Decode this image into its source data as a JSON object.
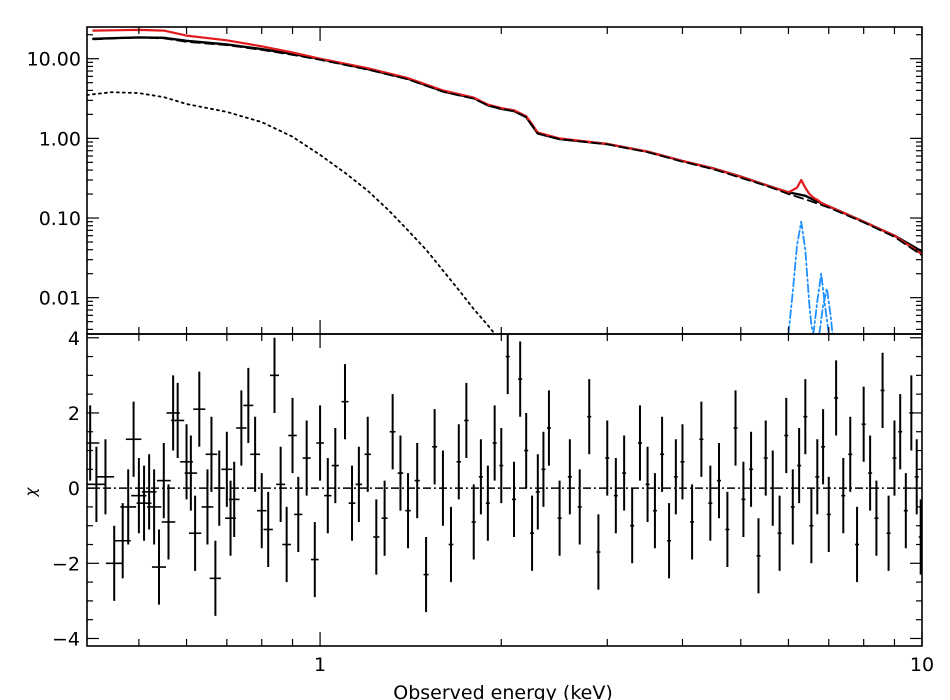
{
  "chart_data": [
    {
      "type": "line",
      "panel": "spectrum",
      "title": "",
      "xlabel": "",
      "ylabel": "",
      "x_scale": "log",
      "y_scale": "log",
      "xlim": [
        0.41,
        10
      ],
      "ylim": [
        0.0035,
        25
      ],
      "y_ticks": [
        0.01,
        0.1,
        1,
        10
      ],
      "y_tick_labels": [
        "0.01",
        "0.10",
        "1.00",
        "10.00"
      ],
      "series": [
        {
          "style": "data points",
          "color": "#000000",
          "x": [
            0.42,
            0.5,
            0.55,
            0.6,
            0.7,
            0.8,
            0.9,
            1.0,
            1.2,
            1.4,
            1.6,
            1.8,
            1.9,
            2.0,
            2.1,
            2.2,
            2.25,
            2.3,
            2.5,
            3.0,
            3.5,
            4.0,
            4.5,
            5.0,
            5.5,
            6.0,
            6.2,
            6.4,
            6.6,
            7.0,
            8.0,
            9.0,
            10.0
          ],
          "y": [
            17.8,
            18.5,
            18.3,
            16.8,
            15.1,
            13.2,
            11.5,
            9.9,
            7.4,
            5.6,
            3.9,
            3.2,
            2.6,
            2.35,
            2.2,
            1.85,
            1.45,
            1.15,
            0.98,
            0.85,
            0.68,
            0.52,
            0.42,
            0.33,
            0.26,
            0.21,
            0.2,
            0.19,
            0.17,
            0.14,
            0.09,
            0.06,
            0.038
          ]
        },
        {
          "style": "solid",
          "color": "#e31a1c",
          "x": [
            0.42,
            0.5,
            0.55,
            0.6,
            0.7,
            0.8,
            0.9,
            1.0,
            1.2,
            1.4,
            1.6,
            1.8,
            1.9,
            2.0,
            2.1,
            2.2,
            2.25,
            2.3,
            2.5,
            3.0,
            3.5,
            4.0,
            4.5,
            5.0,
            5.5,
            6.0,
            6.2,
            6.3,
            6.4,
            6.5,
            6.6,
            6.7,
            6.8,
            7.0,
            8.0,
            9.0,
            10.0
          ],
          "y": [
            22.5,
            23.0,
            22.5,
            19.5,
            17.0,
            14.3,
            12.0,
            10.0,
            7.6,
            5.7,
            4.0,
            3.25,
            2.65,
            2.4,
            2.25,
            1.9,
            1.5,
            1.18,
            1.0,
            0.85,
            0.68,
            0.52,
            0.42,
            0.33,
            0.26,
            0.21,
            0.24,
            0.3,
            0.24,
            0.2,
            0.18,
            0.17,
            0.155,
            0.14,
            0.09,
            0.06,
            0.035
          ]
        },
        {
          "style": "dashed",
          "color": "#000000",
          "x": [
            0.42,
            0.5,
            0.55,
            0.6,
            0.7,
            0.8,
            0.9,
            1.0,
            1.2,
            1.4,
            1.6,
            1.8,
            1.9,
            2.0,
            2.1,
            2.2,
            2.25,
            2.3,
            2.5,
            3.0,
            3.5,
            4.0,
            4.5,
            5.0,
            5.5,
            6.0,
            6.5,
            7.0,
            8.0,
            9.0,
            10.0
          ],
          "y": [
            17.5,
            18.5,
            18.0,
            16.3,
            14.8,
            12.9,
            11.2,
            9.7,
            7.3,
            5.5,
            3.85,
            3.15,
            2.6,
            2.35,
            2.2,
            1.85,
            1.45,
            1.15,
            0.98,
            0.84,
            0.67,
            0.51,
            0.41,
            0.32,
            0.255,
            0.2,
            0.165,
            0.135,
            0.088,
            0.058,
            0.034
          ]
        },
        {
          "style": "dotted",
          "color": "#000000",
          "x": [
            0.41,
            0.45,
            0.5,
            0.55,
            0.6,
            0.7,
            0.8,
            0.9,
            1.0,
            1.1,
            1.2,
            1.3,
            1.4,
            1.5,
            1.6,
            1.7,
            1.8,
            1.9,
            1.95
          ],
          "y": [
            3.5,
            3.8,
            3.7,
            3.3,
            2.7,
            2.15,
            1.6,
            1.05,
            0.62,
            0.37,
            0.22,
            0.125,
            0.07,
            0.04,
            0.022,
            0.0125,
            0.0072,
            0.0045,
            0.0035
          ]
        },
        {
          "style": "dash-dot",
          "color": "#1e90ff",
          "x": [
            6.0,
            6.1,
            6.2,
            6.3,
            6.4,
            6.5,
            6.55,
            6.6
          ],
          "y": [
            0.0035,
            0.012,
            0.045,
            0.09,
            0.04,
            0.008,
            0.0045,
            0.0035
          ]
        },
        {
          "style": "dash-dot",
          "color": "#1e90ff",
          "x": [
            6.6,
            6.7,
            6.8,
            6.9,
            7.0
          ],
          "y": [
            0.0035,
            0.009,
            0.02,
            0.008,
            0.0035
          ]
        },
        {
          "style": "dash-dot",
          "color": "#1e90ff",
          "x": [
            6.75,
            6.85,
            6.95,
            7.05,
            7.1
          ],
          "y": [
            0.0035,
            0.008,
            0.013,
            0.006,
            0.0035
          ]
        }
      ]
    },
    {
      "type": "scatter",
      "panel": "residuals",
      "title": "",
      "xlabel": "Observed energy (keV)",
      "ylabel": "χ",
      "x_scale": "log",
      "y_scale": "linear",
      "xlim": [
        0.41,
        10
      ],
      "ylim": [
        -4.2,
        4.1
      ],
      "x_ticks": [
        1,
        10
      ],
      "x_tick_labels": [
        "1",
        "10"
      ],
      "y_ticks": [
        -4,
        -2,
        0,
        2,
        4
      ],
      "y_tick_labels": [
        "−4",
        "−2",
        "0",
        "2",
        "4"
      ],
      "zero_line": 0,
      "error_bar": 1,
      "x": [
        0.415,
        0.425,
        0.44,
        0.455,
        0.47,
        0.48,
        0.49,
        0.5,
        0.51,
        0.52,
        0.53,
        0.54,
        0.55,
        0.56,
        0.57,
        0.58,
        0.6,
        0.61,
        0.62,
        0.63,
        0.65,
        0.66,
        0.67,
        0.68,
        0.7,
        0.71,
        0.72,
        0.74,
        0.76,
        0.78,
        0.8,
        0.82,
        0.84,
        0.86,
        0.88,
        0.9,
        0.92,
        0.95,
        0.98,
        1.0,
        1.03,
        1.06,
        1.1,
        1.13,
        1.16,
        1.2,
        1.24,
        1.28,
        1.32,
        1.36,
        1.4,
        1.45,
        1.5,
        1.55,
        1.6,
        1.65,
        1.7,
        1.75,
        1.8,
        1.85,
        1.9,
        1.95,
        2.0,
        2.05,
        2.1,
        2.15,
        2.2,
        2.25,
        2.3,
        2.35,
        2.4,
        2.5,
        2.6,
        2.7,
        2.8,
        2.9,
        3.0,
        3.1,
        3.2,
        3.3,
        3.4,
        3.5,
        3.6,
        3.7,
        3.8,
        3.9,
        4.0,
        4.15,
        4.3,
        4.45,
        4.6,
        4.75,
        4.9,
        5.05,
        5.2,
        5.35,
        5.5,
        5.65,
        5.8,
        5.95,
        6.1,
        6.25,
        6.4,
        6.55,
        6.7,
        6.85,
        7.0,
        7.2,
        7.4,
        7.6,
        7.8,
        8.0,
        8.2,
        8.4,
        8.6,
        8.8,
        9.0,
        9.2,
        9.4,
        9.6,
        9.8,
        9.95
      ],
      "y": [
        1.2,
        0.1,
        0.3,
        -2.0,
        -1.4,
        -0.5,
        1.3,
        -0.2,
        -0.4,
        -0.1,
        -0.5,
        -2.1,
        0.2,
        -0.9,
        2.0,
        1.8,
        0.7,
        0.4,
        -1.2,
        2.1,
        -0.5,
        0.9,
        -2.4,
        0.0,
        0.5,
        -0.8,
        -0.3,
        1.6,
        2.2,
        0.9,
        -0.6,
        -1.1,
        3.0,
        0.1,
        -1.5,
        1.4,
        -0.7,
        0.8,
        -1.9,
        1.2,
        -0.2,
        0.6,
        2.3,
        -0.4,
        0.1,
        0.9,
        -1.3,
        -0.8,
        1.5,
        0.4,
        -0.6,
        0.2,
        -2.3,
        1.1,
        0.0,
        -1.5,
        0.7,
        1.8,
        -0.9,
        0.3,
        -0.4,
        1.2,
        0.6,
        3.5,
        -0.3,
        2.9,
        1.0,
        -1.2,
        -0.1,
        0.5,
        1.6,
        -0.8,
        0.3,
        -0.5,
        1.9,
        -1.7,
        0.8,
        -0.2,
        0.4,
        -1.0,
        1.2,
        0.1,
        -0.6,
        0.9,
        -1.4,
        0.3,
        0.7,
        -0.9,
        1.3,
        -0.4,
        0.2,
        -1.1,
        1.6,
        -0.3,
        0.5,
        -1.8,
        0.8,
        0.0,
        -1.2,
        1.4,
        -0.5,
        0.6,
        1.9,
        -1.0,
        0.3,
        1.1,
        -0.7,
        2.4,
        -0.2,
        0.9,
        -1.5,
        1.7,
        0.4,
        -0.8,
        2.6,
        -1.2,
        0.8,
        1.5,
        -0.6,
        2.0,
        0.3,
        -1.3
      ]
    }
  ]
}
